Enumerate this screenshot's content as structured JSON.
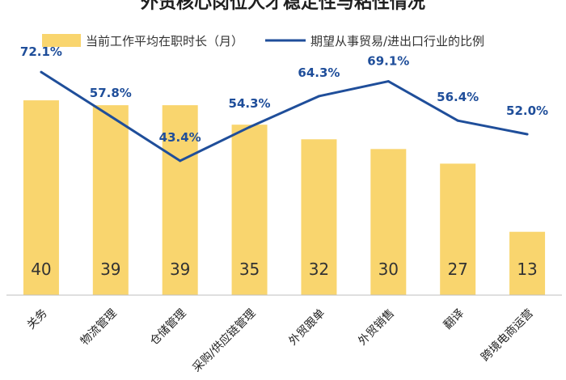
{
  "chart_data": {
    "type": "bar",
    "title": "外贸核心岗位人才稳定性与粘性情况",
    "categories": [
      "关务",
      "物流管理",
      "仓储管理",
      "采购/供应链管理",
      "外贸跟单",
      "外贸销售",
      "翻译",
      "跨境电商运营"
    ],
    "series": [
      {
        "name": "当前工作平均在职时长（月）",
        "type": "bar",
        "color": "#F9D56E",
        "values": [
          40,
          39,
          39,
          35,
          32,
          30,
          27,
          13
        ],
        "labels": [
          "40",
          "39",
          "39",
          "35",
          "32",
          "30",
          "27",
          "13"
        ]
      },
      {
        "name": "期望从事贸易/进出口行业的比例",
        "type": "line",
        "color": "#1F4E9A",
        "values": [
          72.1,
          57.8,
          43.4,
          54.3,
          64.3,
          69.1,
          56.4,
          52.0
        ],
        "labels": [
          "72.1%",
          "57.8%",
          "43.4%",
          "54.3%",
          "64.3%",
          "69.1%",
          "56.4%",
          "52.0%"
        ]
      }
    ],
    "bar_axis": {
      "min": 0,
      "max": 44
    },
    "line_axis": {
      "min": 0,
      "max": 100
    },
    "grid": false,
    "legend_position": "top"
  }
}
